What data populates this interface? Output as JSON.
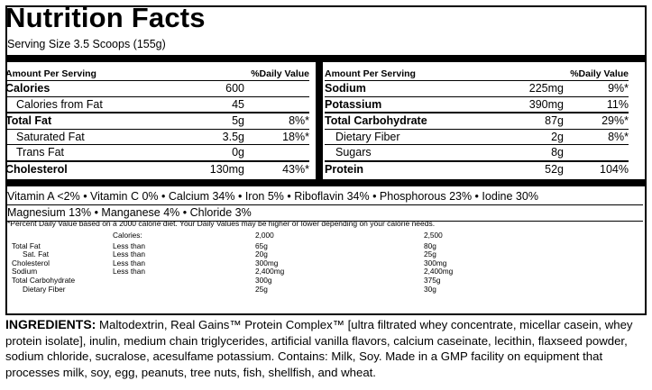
{
  "title": "Nutrition Facts",
  "serving": "Serving Size 3.5 Scoops (155g)",
  "left_header": {
    "a": "Amount Per Serving",
    "b": "%Daily Value"
  },
  "right_header": {
    "a": "Amount Per Serving",
    "b": "%Daily Value"
  },
  "left_rows": [
    {
      "name": "Calories",
      "amt": "600",
      "dv": "",
      "bold": true,
      "ind": false
    },
    {
      "name": "Calories from Fat",
      "amt": "45",
      "dv": "",
      "bold": false,
      "ind": true
    },
    {
      "name": "Total Fat",
      "amt": "5g",
      "dv": "8%*",
      "bold": true,
      "ind": false
    },
    {
      "name": "Saturated Fat",
      "amt": "3.5g",
      "dv": "18%*",
      "bold": false,
      "ind": true
    },
    {
      "name": "Trans Fat",
      "amt": "0g",
      "dv": "",
      "bold": false,
      "ind": true
    },
    {
      "name": "Cholesterol",
      "amt": "130mg",
      "dv": "43%*",
      "bold": true,
      "ind": false
    }
  ],
  "right_rows": [
    {
      "name": "Sodium",
      "amt": "225mg",
      "dv": "9%*",
      "bold": true,
      "ind": false
    },
    {
      "name": "Potassium",
      "amt": "390mg",
      "dv": "11%",
      "bold": true,
      "ind": false
    },
    {
      "name": "Total Carbohydrate",
      "amt": "87g",
      "dv": "29%*",
      "bold": true,
      "ind": false
    },
    {
      "name": "Dietary Fiber",
      "amt": "2g",
      "dv": "8%*",
      "bold": false,
      "ind": true
    },
    {
      "name": "Sugars",
      "amt": "8g",
      "dv": "",
      "bold": false,
      "ind": true
    },
    {
      "name": "Protein",
      "amt": "52g",
      "dv": "104%",
      "bold": true,
      "ind": false
    }
  ],
  "vitamins": [
    "Vitamin A <2% • Vitamin C 0% • Calcium 34% • Iron 5% • Riboflavin 34% • Phosphorous 23% • Iodine 30%",
    "Magnesium 13% • Manganese 4% • Chloride 3%"
  ],
  "footnote": "*Percent Daily Value based on a 2000 calorie diet. Your Daily Values may be higher or lower depending on your calorie needs.",
  "footer_table": {
    "header": {
      "label": "Calories:",
      "c1": "2,000",
      "c2": "2,500"
    },
    "rows": [
      {
        "name": "Total Fat",
        "qual": "Less than",
        "c1": "65g",
        "c2": "80g",
        "ind": false
      },
      {
        "name": "Sat. Fat",
        "qual": "Less than",
        "c1": "20g",
        "c2": "25g",
        "ind": true
      },
      {
        "name": "Cholesterol",
        "qual": "Less than",
        "c1": "300mg",
        "c2": "300mg",
        "ind": false
      },
      {
        "name": "Sodium",
        "qual": "Less than",
        "c1": "2,400mg",
        "c2": "2,400mg",
        "ind": false
      },
      {
        "name": "Total Carbohydrate",
        "qual": "",
        "c1": "300g",
        "c2": "375g",
        "ind": false
      },
      {
        "name": "Dietary Fiber",
        "qual": "",
        "c1": "25g",
        "c2": "30g",
        "ind": true
      }
    ]
  },
  "ingredients": {
    "heading": "INGREDIENTS:",
    "text": " Maltodextrin, Real Gains™ Protein Complex™ [ultra filtrated whey  concentrate, micellar casein, whey protein isolate], inulin, medium chain triglycerides, artificial vanilla flavors, calcium caseinate, lecithin, flaxseed powder, sodium chloride, sucralose, acesulfame potassium. Contains: Milk, Soy. Made in a GMP facility on equipment that processes milk, soy, egg, peanuts, tree nuts, fish, shellfish, and wheat."
  }
}
